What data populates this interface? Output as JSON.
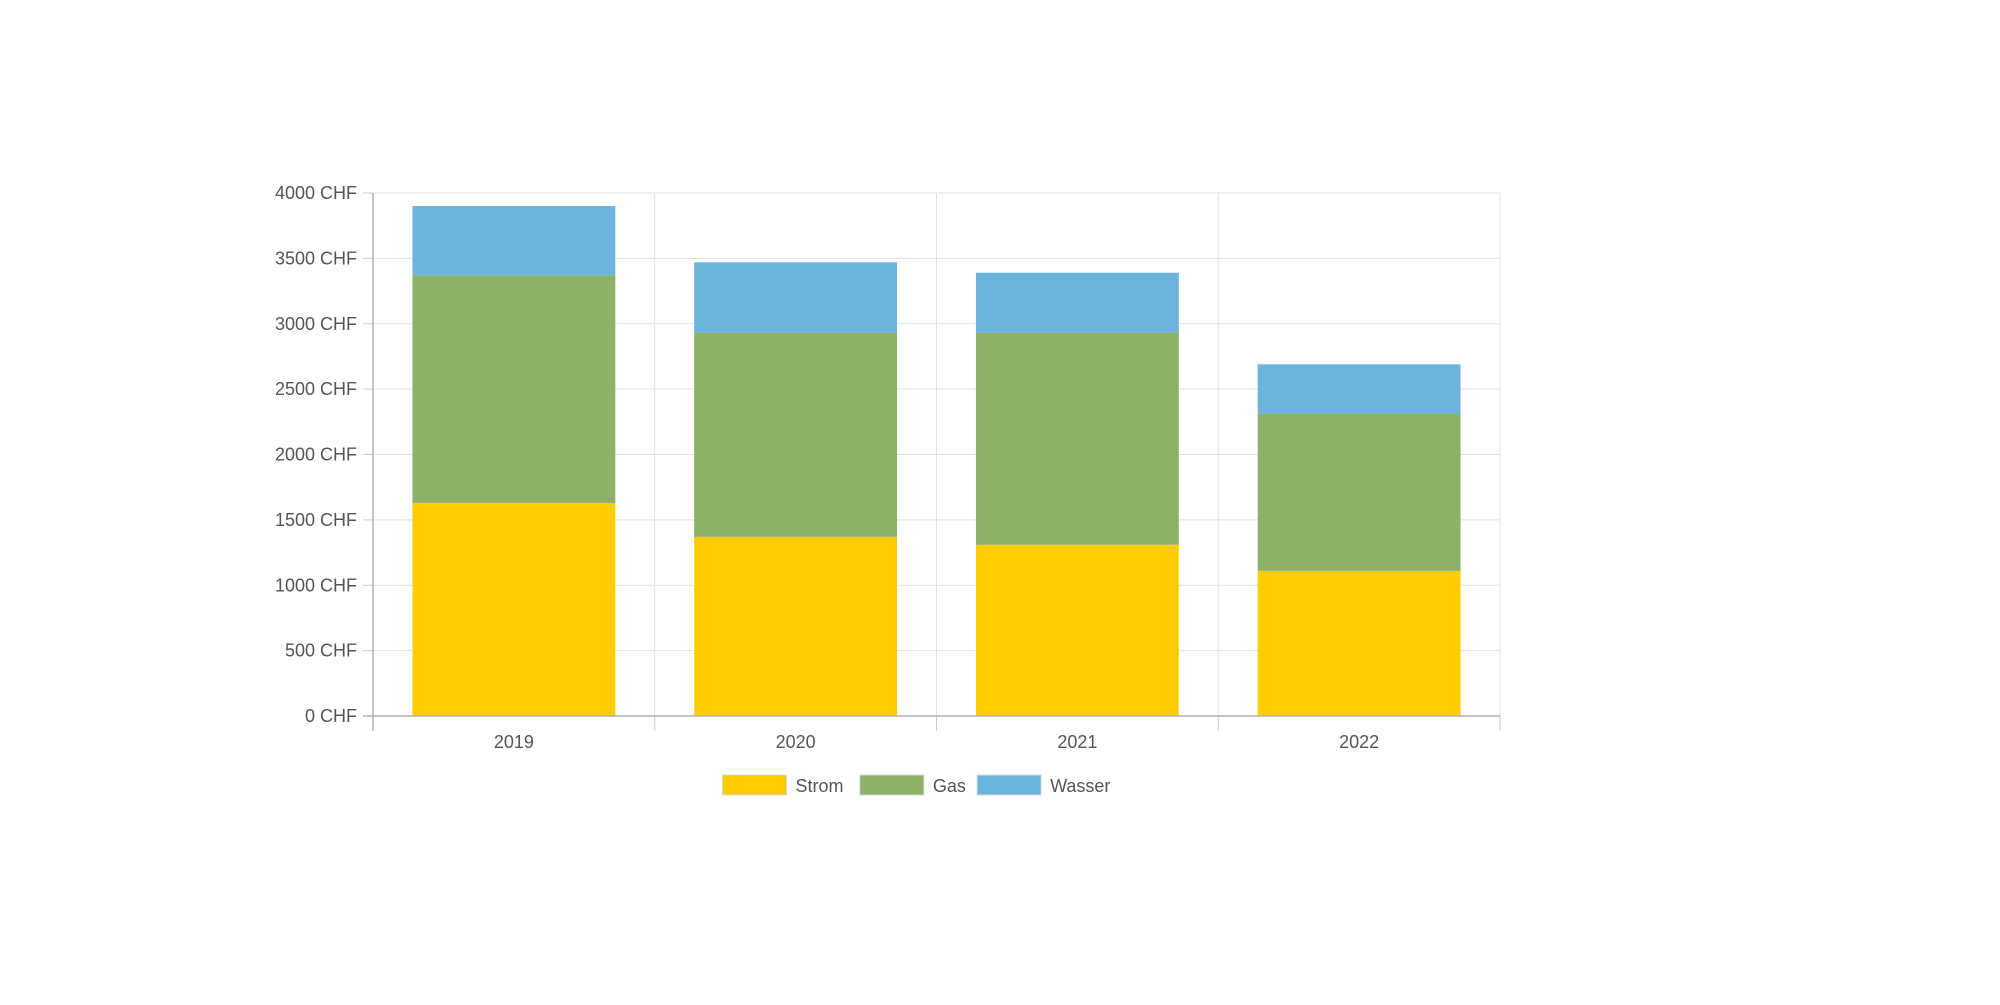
{
  "chart_data": {
    "type": "bar",
    "stacked": true,
    "categories": [
      "2019",
      "2020",
      "2021",
      "2022"
    ],
    "series": [
      {
        "name": "Strom",
        "color": "#ffcc00",
        "values": [
          1630,
          1370,
          1310,
          1110
        ]
      },
      {
        "name": "Gas",
        "color": "#8db267",
        "values": [
          1740,
          1560,
          1620,
          1200
        ]
      },
      {
        "name": "Wasser",
        "color": "#6cb4dc",
        "values": [
          530,
          540,
          460,
          380
        ]
      }
    ],
    "ylim": [
      0,
      4000
    ],
    "yticks": [
      0,
      500,
      1000,
      1500,
      2000,
      2500,
      3000,
      3500,
      4000
    ],
    "ytick_labels": [
      "0 CHF",
      "500 CHF",
      "1000 CHF",
      "1500 CHF",
      "2000 CHF",
      "2500 CHF",
      "3000 CHF",
      "3500 CHF",
      "4000 CHF"
    ],
    "title": "",
    "xlabel": "",
    "ylabel": "",
    "grid": true,
    "legend_position": "bottom-center"
  }
}
